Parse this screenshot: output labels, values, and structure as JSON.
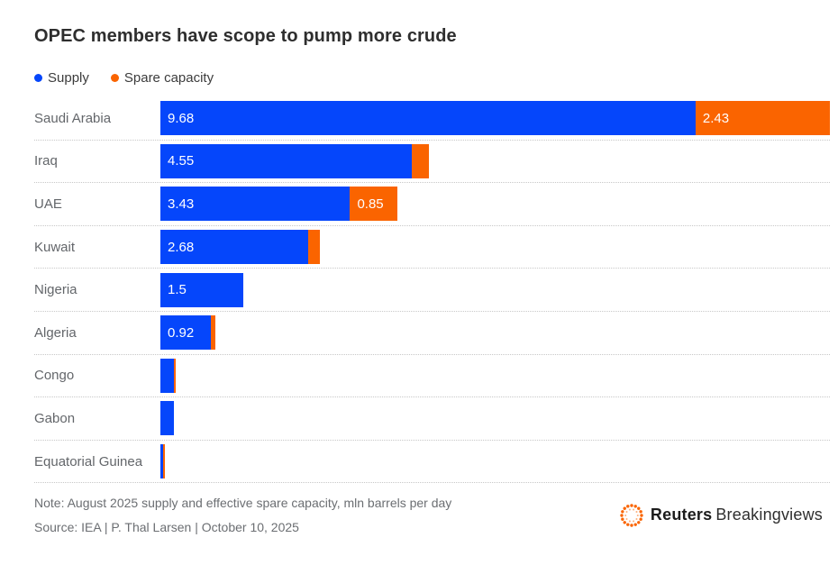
{
  "title": "OPEC members have scope to pump more crude",
  "colors": {
    "supply": "#0546fb",
    "spare_capacity": "#fa6400",
    "title_text": "#2e2e2e",
    "category_label_text": "#63666a",
    "bar_value_text": "#ffffff",
    "footer_text": "#6b6e72",
    "separator": "#c8c8c8"
  },
  "legend": [
    {
      "label": "Supply",
      "color": "#0546fb"
    },
    {
      "label": "Spare capacity",
      "color": "#fa6400"
    }
  ],
  "chart_data": {
    "type": "bar",
    "orientation": "horizontal",
    "stacked": true,
    "title": "OPEC members have scope to pump more crude",
    "categories": [
      "Saudi Arabia",
      "Iraq",
      "UAE",
      "Kuwait",
      "Nigeria",
      "Algeria",
      "Congo",
      "Gabon",
      "Equatorial Guinea"
    ],
    "series": [
      {
        "name": "Supply",
        "color": "#0546fb",
        "values": [
          9.68,
          4.55,
          3.43,
          2.68,
          1.5,
          0.92,
          0.25,
          0.25,
          0.05
        ],
        "bar_labels": [
          "9.68",
          "4.55",
          "3.43",
          "2.68",
          "1.5",
          "0.92",
          "",
          "",
          ""
        ]
      },
      {
        "name": "Spare capacity",
        "color": "#fa6400",
        "values": [
          2.43,
          0.3,
          0.85,
          0.2,
          0,
          0.07,
          0.03,
          0,
          0.03
        ],
        "bar_labels": [
          "2.43",
          "",
          "0.85",
          "",
          "",
          "",
          "",
          "",
          ""
        ]
      }
    ],
    "xlim": [
      0,
      12.11
    ],
    "value_unit": "mln barrels per day",
    "grid": false,
    "legend_position": "top",
    "row_separator": "dotted"
  },
  "footer": {
    "note": "Note: August 2025 supply and effective spare capacity, mln barrels per day",
    "source": "Source: IEA | P. Thal Larsen | October 10, 2025",
    "brand_bold": "Reuters",
    "brand_regular": "Breakingviews"
  }
}
